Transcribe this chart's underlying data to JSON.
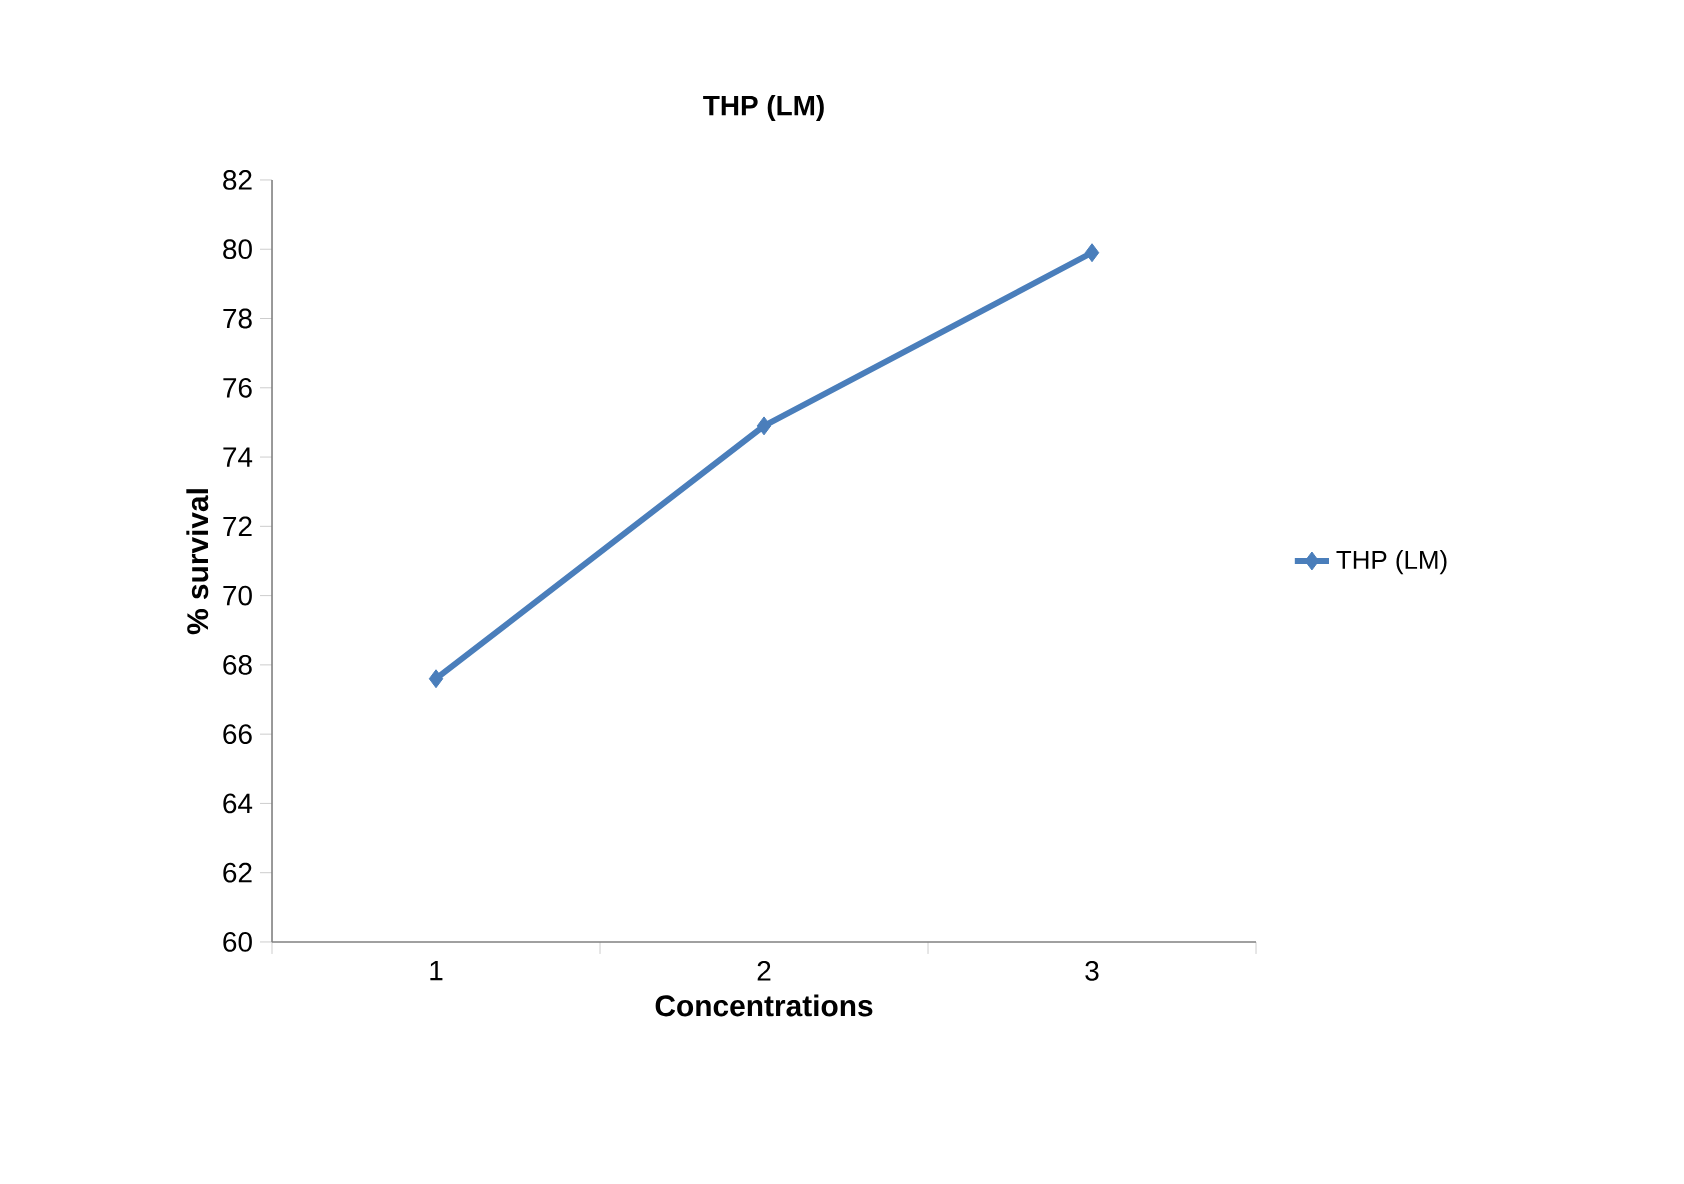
{
  "chart_data": {
    "type": "line",
    "title": "THP (LM)",
    "xlabel": "Concentrations",
    "ylabel": "% survival",
    "categories": [
      "1",
      "2",
      "3"
    ],
    "series": [
      {
        "name": "THP (LM)",
        "color": "#4a7ebb",
        "values": [
          67.6,
          74.9,
          79.9
        ]
      }
    ],
    "ylim": [
      60,
      82
    ],
    "yticks": [
      60,
      62,
      64,
      66,
      68,
      70,
      72,
      74,
      76,
      78,
      80,
      82
    ],
    "grid": false,
    "legend": "right",
    "marker": "diamond",
    "line_style": "solid"
  }
}
